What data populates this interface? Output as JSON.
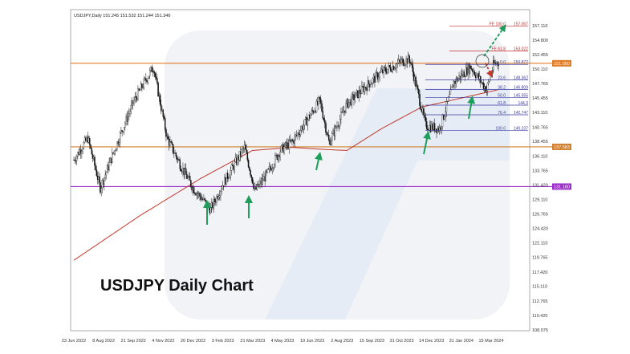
{
  "chart_data": {
    "type": "candlestick",
    "header": "USDJPY,Daily  151.245 151.532 151.244 151.346",
    "title": "USDJPY Daily Chart",
    "ylim": [
      108.075,
      158.5
    ],
    "y_ticks": [
      "157.110",
      "154.800",
      "152.455",
      "150.110",
      "147.765",
      "145.455",
      "143.110",
      "140.765",
      "138.455",
      "136.110",
      "133.765",
      "131.420",
      "129.110",
      "126.765",
      "124.420",
      "122.110",
      "119.765",
      "117.420",
      "115.110",
      "112.765",
      "110.420",
      "108.075"
    ],
    "x_ticks": [
      "23 Jun 2022",
      "8 Aug 2022",
      "21 Sep 2022",
      "4 Nov 2022",
      "20 Dec 2022",
      "3 Feb 2023",
      "21 Mar 2023",
      "4 May 2023",
      "19 Jun 2023",
      "2 Aug 2023",
      "15 Sep 2023",
      "31 Oct 2023",
      "14 Dec 2023",
      "31 Jan 2024",
      "15 Mar 2024"
    ],
    "price_path": [
      [
        "2022-06-23",
        135.5
      ],
      [
        "2022-07-14",
        139.0
      ],
      [
        "2022-08-02",
        131.0
      ],
      [
        "2022-09-01",
        139.5
      ],
      [
        "2022-09-22",
        145.0
      ],
      [
        "2022-10-21",
        150.5
      ],
      [
        "2022-11-11",
        139.0
      ],
      [
        "2022-12-02",
        134.5
      ],
      [
        "2022-12-20",
        131.0
      ],
      [
        "2023-01-16",
        127.5
      ],
      [
        "2023-02-03",
        131.5
      ],
      [
        "2023-03-08",
        137.5
      ],
      [
        "2023-03-24",
        130.5
      ],
      [
        "2023-04-10",
        133.0
      ],
      [
        "2023-05-01",
        137.0
      ],
      [
        "2023-05-20",
        138.5
      ],
      [
        "2023-06-30",
        145.0
      ],
      [
        "2023-07-14",
        138.3
      ],
      [
        "2023-08-10",
        144.5
      ],
      [
        "2023-09-30",
        149.5
      ],
      [
        "2023-10-31",
        151.3
      ],
      [
        "2023-11-13",
        151.7
      ],
      [
        "2023-12-07",
        141.0
      ],
      [
        "2023-12-28",
        140.5
      ],
      [
        "2024-01-19",
        148.0
      ],
      [
        "2024-02-13",
        150.5
      ],
      [
        "2024-03-08",
        146.8
      ],
      [
        "2024-03-19",
        150.9
      ],
      [
        "2024-03-26",
        151.3
      ]
    ],
    "moving_average": [
      [
        "2022-06-23",
        119.3
      ],
      [
        "2022-10-01",
        126.5
      ],
      [
        "2023-01-01",
        132.5
      ],
      [
        "2023-03-20",
        137.0
      ],
      [
        "2023-05-20",
        137.5
      ],
      [
        "2023-07-01",
        137.2
      ],
      [
        "2023-08-10",
        137.0
      ],
      [
        "2023-10-01",
        140.5
      ],
      [
        "2023-12-01",
        144.0
      ],
      [
        "2024-03-26",
        146.8
      ]
    ],
    "horizontal_levels": [
      {
        "price": 151.05,
        "label": "151.050",
        "color": "#e07b2a"
      },
      {
        "price": 137.583,
        "label": "137.583",
        "color": "#d08030"
      },
      {
        "price": 131.18,
        "label": "131.180",
        "color": "#9b30c8"
      }
    ],
    "fib_retracement": [
      {
        "level": "0.0",
        "price": 150.872
      },
      {
        "level": "23.6",
        "price": 148.362
      },
      {
        "level": "38.2",
        "price": 146.809
      },
      {
        "level": "50.0",
        "price": 145.555
      },
      {
        "level": "61.8",
        "price": 144.3
      },
      {
        "level": "76.4",
        "price": 142.747
      },
      {
        "level": "100.0",
        "price": 140.237
      }
    ],
    "fib_expansion": [
      {
        "level": "FE 100.0",
        "price": 157.067
      },
      {
        "level": "FE 61.8",
        "price": 153.022
      }
    ],
    "support_arrows": [
      "2023-01-13",
      "2023-03-24",
      "2023-07-15",
      "2023-12-10",
      "2024-03-08"
    ],
    "colors": {
      "up": "#111111",
      "down": "#111111",
      "ma": "#c0392b",
      "fib": "#3a3aa0",
      "fe": "#c03030",
      "arrow_up": "#1e9e5a",
      "arrow_down": "#c0392b"
    }
  }
}
